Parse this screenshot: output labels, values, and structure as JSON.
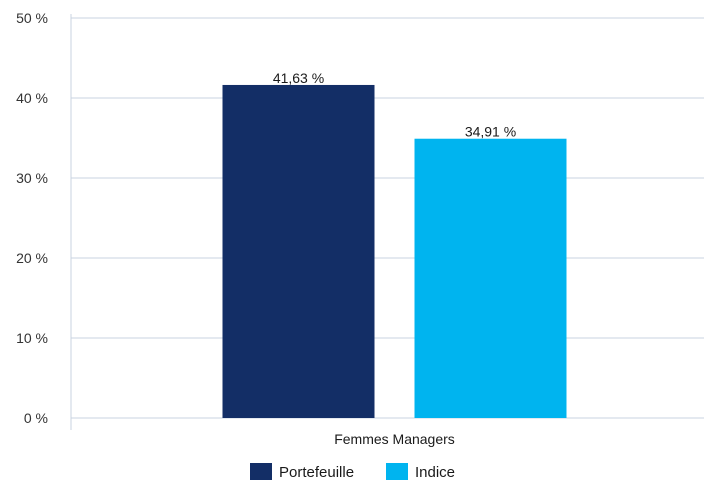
{
  "chart_data": {
    "type": "bar",
    "categories": [
      "Femmes Managers"
    ],
    "series": [
      {
        "name": "Portefeuille",
        "values": [
          41.63
        ],
        "label": "41,63 %",
        "color": "#132e66"
      },
      {
        "name": "Indice",
        "values": [
          34.91
        ],
        "label": "34,91 %",
        "color": "#00b4ef"
      }
    ],
    "ylim": [
      0,
      50
    ],
    "yticks": [
      0,
      10,
      20,
      30,
      40,
      50
    ],
    "ytick_labels": [
      "0 %",
      "10 %",
      "20 %",
      "30 %",
      "40 %",
      "50 %"
    ],
    "grid": true,
    "legend_position": "bottom"
  }
}
